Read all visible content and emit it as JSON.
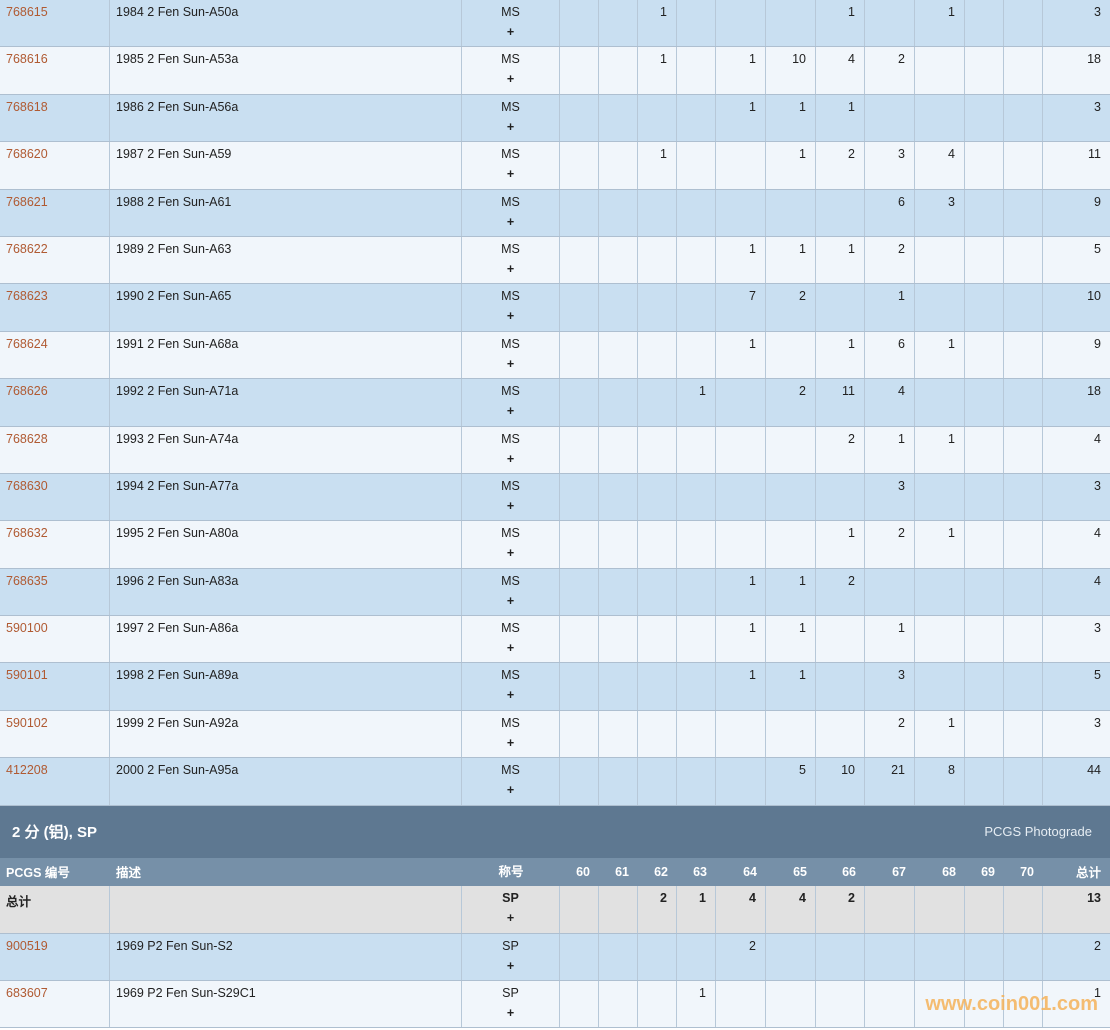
{
  "sections": [
    {
      "rows": [
        {
          "pcgs": "768615",
          "desc": "1984 2 Fen Sun-A50a",
          "grade": "MS",
          "plus": "+",
          "counts": [
            null,
            null,
            1,
            null,
            null,
            null,
            1,
            null,
            1,
            null,
            null
          ],
          "total": 3
        },
        {
          "pcgs": "768616",
          "desc": "1985 2 Fen Sun-A53a",
          "grade": "MS",
          "plus": "+",
          "counts": [
            null,
            null,
            1,
            null,
            1,
            10,
            4,
            2,
            null,
            null,
            null
          ],
          "total": 18
        },
        {
          "pcgs": "768618",
          "desc": "1986 2 Fen Sun-A56a",
          "grade": "MS",
          "plus": "+",
          "counts": [
            null,
            null,
            null,
            null,
            1,
            1,
            1,
            null,
            null,
            null,
            null
          ],
          "total": 3
        },
        {
          "pcgs": "768620",
          "desc": "1987 2 Fen Sun-A59",
          "grade": "MS",
          "plus": "+",
          "counts": [
            null,
            null,
            1,
            null,
            null,
            1,
            2,
            3,
            4,
            null,
            null
          ],
          "total": 11
        },
        {
          "pcgs": "768621",
          "desc": "1988 2 Fen Sun-A61",
          "grade": "MS",
          "plus": "+",
          "counts": [
            null,
            null,
            null,
            null,
            null,
            null,
            null,
            6,
            3,
            null,
            null
          ],
          "total": 9
        },
        {
          "pcgs": "768622",
          "desc": "1989 2 Fen Sun-A63",
          "grade": "MS",
          "plus": "+",
          "counts": [
            null,
            null,
            null,
            null,
            1,
            1,
            1,
            2,
            null,
            null,
            null
          ],
          "total": 5
        },
        {
          "pcgs": "768623",
          "desc": "1990 2 Fen Sun-A65",
          "grade": "MS",
          "plus": "+",
          "counts": [
            null,
            null,
            null,
            null,
            7,
            2,
            null,
            1,
            null,
            null,
            null
          ],
          "total": 10
        },
        {
          "pcgs": "768624",
          "desc": "1991 2 Fen Sun-A68a",
          "grade": "MS",
          "plus": "+",
          "counts": [
            null,
            null,
            null,
            null,
            1,
            null,
            1,
            6,
            1,
            null,
            null
          ],
          "total": 9
        },
        {
          "pcgs": "768626",
          "desc": "1992 2 Fen Sun-A71a",
          "grade": "MS",
          "plus": "+",
          "counts": [
            null,
            null,
            null,
            1,
            null,
            2,
            11,
            4,
            null,
            null,
            null
          ],
          "total": 18
        },
        {
          "pcgs": "768628",
          "desc": "1993 2 Fen Sun-A74a",
          "grade": "MS",
          "plus": "+",
          "counts": [
            null,
            null,
            null,
            null,
            null,
            null,
            2,
            1,
            1,
            null,
            null
          ],
          "total": 4
        },
        {
          "pcgs": "768630",
          "desc": "1994 2 Fen Sun-A77a",
          "grade": "MS",
          "plus": "+",
          "counts": [
            null,
            null,
            null,
            null,
            null,
            null,
            null,
            3,
            null,
            null,
            null
          ],
          "total": 3
        },
        {
          "pcgs": "768632",
          "desc": "1995 2 Fen Sun-A80a",
          "grade": "MS",
          "plus": "+",
          "counts": [
            null,
            null,
            null,
            null,
            null,
            null,
            1,
            2,
            1,
            null,
            null
          ],
          "total": 4
        },
        {
          "pcgs": "768635",
          "desc": "1996 2 Fen Sun-A83a",
          "grade": "MS",
          "plus": "+",
          "counts": [
            null,
            null,
            null,
            null,
            1,
            1,
            2,
            null,
            null,
            null,
            null
          ],
          "total": 4
        },
        {
          "pcgs": "590100",
          "desc": "1997 2 Fen Sun-A86a",
          "grade": "MS",
          "plus": "+",
          "counts": [
            null,
            null,
            null,
            null,
            1,
            1,
            null,
            1,
            null,
            null,
            null
          ],
          "total": 3
        },
        {
          "pcgs": "590101",
          "desc": "1998 2 Fen Sun-A89a",
          "grade": "MS",
          "plus": "+",
          "counts": [
            null,
            null,
            null,
            null,
            1,
            1,
            null,
            3,
            null,
            null,
            null
          ],
          "total": 5
        },
        {
          "pcgs": "590102",
          "desc": "1999 2 Fen Sun-A92a",
          "grade": "MS",
          "plus": "+",
          "counts": [
            null,
            null,
            null,
            null,
            null,
            null,
            null,
            2,
            1,
            null,
            null
          ],
          "total": 3
        },
        {
          "pcgs": "412208",
          "desc": "2000 2 Fen Sun-A95a",
          "grade": "MS",
          "plus": "+",
          "counts": [
            null,
            null,
            null,
            null,
            null,
            5,
            10,
            21,
            8,
            null,
            null
          ],
          "total": 44
        }
      ]
    },
    {
      "title": "2 分 (铝), SP",
      "link": "PCGS Photograde",
      "columns": [
        "PCGS 编号",
        "描述",
        "称号",
        "60",
        "61",
        "62",
        "63",
        "64",
        "65",
        "66",
        "67",
        "68",
        "69",
        "70",
        "总计"
      ],
      "total_row": {
        "pcgs": "总计",
        "grade": "SP",
        "plus": "+",
        "counts": [
          null,
          null,
          2,
          1,
          4,
          4,
          2,
          null,
          null,
          null,
          null
        ],
        "total": 13
      },
      "rows": [
        {
          "pcgs": "900519",
          "desc": "1969 P2 Fen Sun-S2",
          "grade": "SP",
          "plus": "+",
          "counts": [
            null,
            null,
            null,
            null,
            2,
            null,
            null,
            null,
            null,
            null,
            null
          ],
          "total": 2
        },
        {
          "pcgs": "683607",
          "desc": "1969 P2 Fen Sun-S29C1",
          "grade": "SP",
          "plus": "+",
          "counts": [
            null,
            null,
            null,
            1,
            null,
            null,
            null,
            null,
            null,
            null,
            null
          ],
          "total": 1
        }
      ]
    }
  ],
  "watermark": "www.coin001.com"
}
